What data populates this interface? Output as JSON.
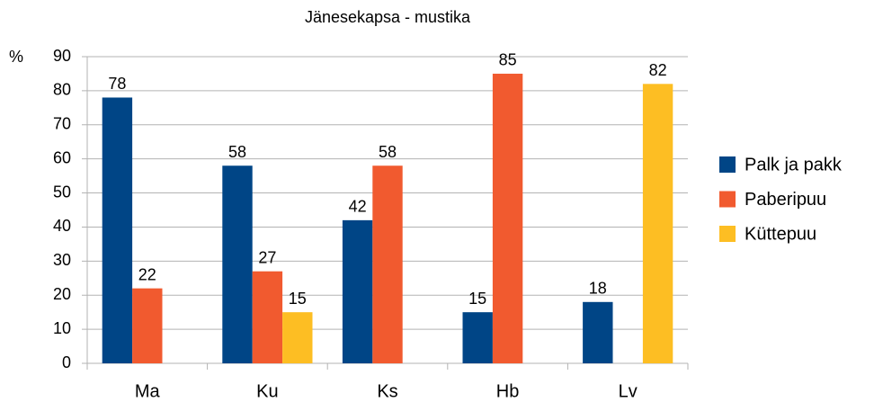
{
  "chart_data": {
    "type": "bar",
    "title": "Jänesekapsa - mustika",
    "ylabel": "%",
    "categories": [
      "Ma",
      "Ku",
      "Ks",
      "Hb",
      "Lv"
    ],
    "series": [
      {
        "name": "Palk ja pakk",
        "color": "#004586",
        "values": [
          78,
          58,
          42,
          15,
          18
        ]
      },
      {
        "name": "Paberipuu",
        "color": "#f15a2f",
        "values": [
          22,
          27,
          58,
          85,
          null
        ]
      },
      {
        "name": "Küttepuu",
        "color": "#fdbe23",
        "values": [
          null,
          15,
          null,
          null,
          82
        ]
      }
    ],
    "ylim": [
      0,
      90
    ],
    "yticks": [
      0,
      10,
      20,
      30,
      40,
      50,
      60,
      70,
      80,
      90
    ],
    "grid": true,
    "legend": "right"
  }
}
